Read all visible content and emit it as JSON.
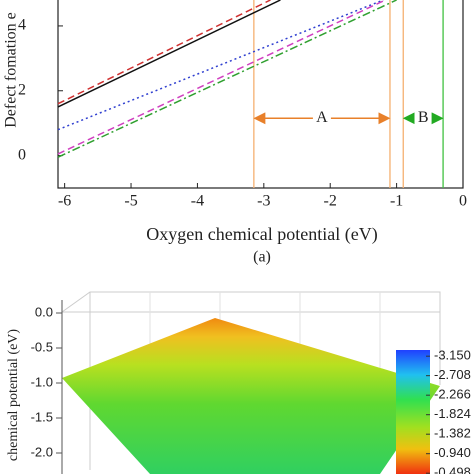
{
  "chart_data": [
    {
      "type": "line",
      "ylabel": "Defect fomation e",
      "xlabel": "Oxygen chemical potential (eV)",
      "caption": "(a)",
      "xlim": [
        -6.1,
        0
      ],
      "ylim": [
        -1,
        4.8
      ],
      "xticks": [
        -6,
        -5,
        -4,
        -3,
        -2,
        -1,
        0
      ],
      "yticks": [
        0,
        2,
        4
      ],
      "series": [
        {
          "x": [
            -6.1,
            -2.75
          ],
          "values": [
            1.5,
            4.8
          ],
          "color": "#111111",
          "dash": "solid"
        },
        {
          "x": [
            -6.1,
            -2.9
          ],
          "values": [
            1.6,
            4.8
          ],
          "color": "#d03030",
          "dash": "dashed"
        },
        {
          "x": [
            -6.1,
            -1.2
          ],
          "values": [
            0.8,
            4.8
          ],
          "color": "#3040d0",
          "dash": "dotted"
        },
        {
          "x": [
            -6.1,
            -1.17
          ],
          "values": [
            0.05,
            4.8
          ],
          "color": "#d040c0",
          "dash": "dashed"
        },
        {
          "x": [
            -6.1,
            -1.0
          ],
          "values": [
            -0.05,
            4.8
          ],
          "color": "#30a030",
          "dash": "dashdot"
        }
      ],
      "regions": [
        {
          "label": "A",
          "from": -3.15,
          "to": -1.1,
          "y": 1.15,
          "color": "#e8802a",
          "line_colors": [
            "#f5b070",
            "#f5b070"
          ]
        },
        {
          "label": "B",
          "from": -0.9,
          "to": -0.3,
          "y": 1.15,
          "color": "#22aa22",
          "line_colors": [
            "#f5b070",
            "#40c040"
          ]
        }
      ]
    },
    {
      "type": "surface",
      "zlabel": "chemical potential (eV)",
      "zlim": [
        0.0,
        -2.0
      ],
      "zticks": [
        {
          "value": 0,
          "label": "0.0"
        },
        -0.5,
        {
          "value": -1,
          "label": "-1.0"
        },
        -1.5,
        {
          "value": -2,
          "label": "-2.0"
        }
      ],
      "clim": [
        -3.29,
        -0.48
      ],
      "colorbar_ticks": [
        {
          "value": -3.15,
          "label": "-3.150"
        },
        {
          "value": -2.708,
          "label": "-2.708"
        },
        {
          "value": -2.266,
          "label": "-2.266"
        },
        {
          "value": -1.824,
          "label": "-1.824"
        },
        {
          "value": -1.382,
          "label": "-1.382"
        },
        {
          "value": -0.94,
          "label": "-0.940"
        },
        {
          "value": -0.498,
          "label": "-0.498"
        }
      ]
    }
  ]
}
